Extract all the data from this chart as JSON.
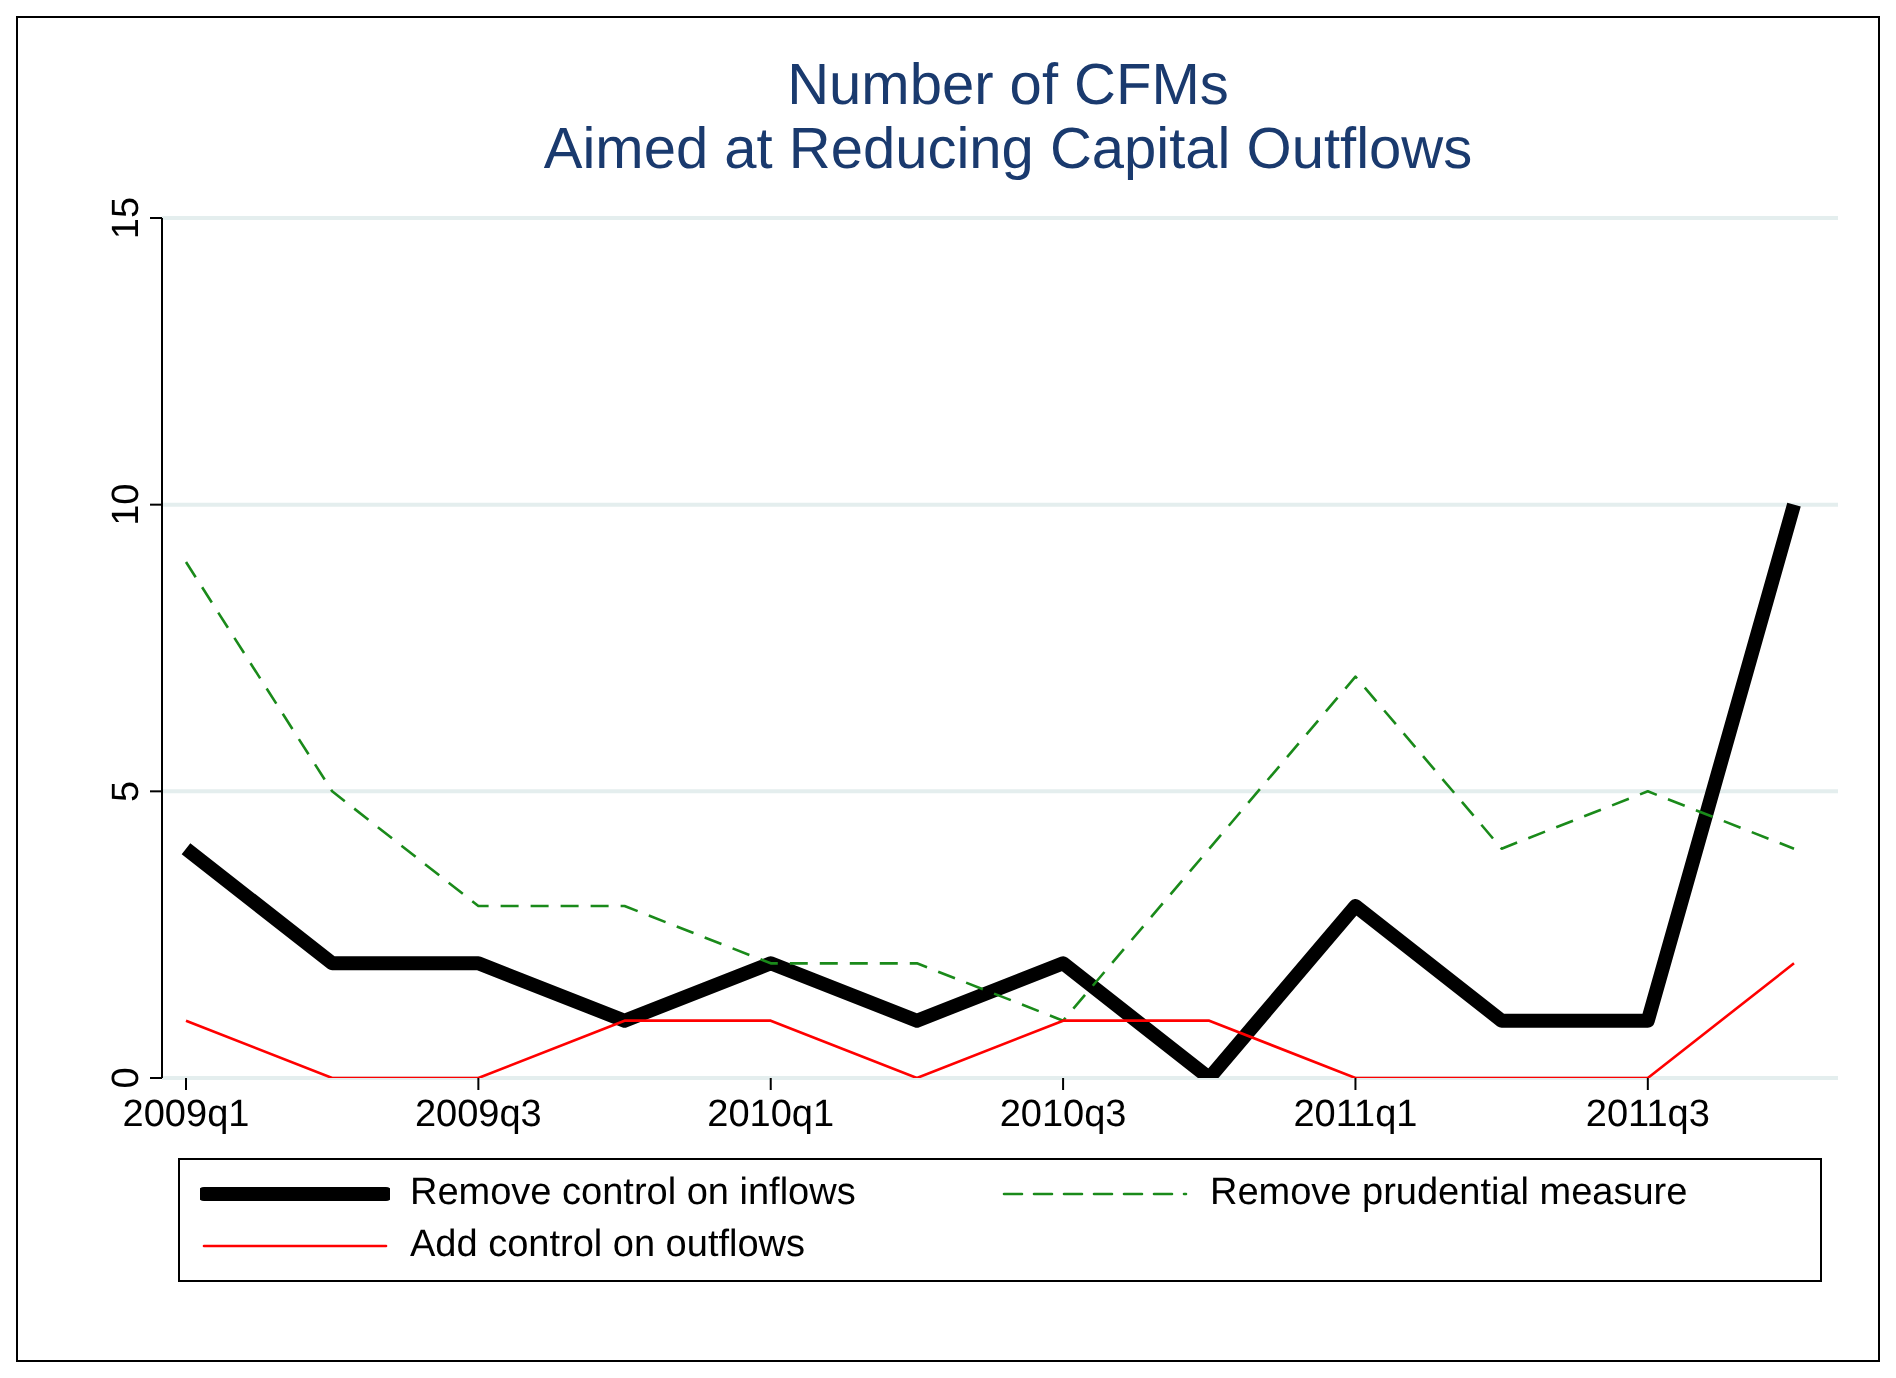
{
  "chart_data": {
    "type": "line",
    "title": "Number of CFMs\nAimed at Reducing Capital Outflows",
    "categories": [
      "2009q1",
      null,
      "2009q3",
      null,
      "2010q1",
      null,
      "2010q3",
      null,
      "2011q1",
      null,
      "2011q3",
      null
    ],
    "series": [
      {
        "name": "Remove control on inflows",
        "color": "#000000",
        "line_style": "solid",
        "values": [
          4,
          2,
          2,
          1,
          2,
          1,
          2,
          0,
          3,
          1,
          1,
          10
        ]
      },
      {
        "name": "Remove prudential measure",
        "color": "#1a8a1a",
        "line_style": "dashed",
        "values": [
          9,
          5,
          3,
          3,
          2,
          2,
          1,
          4,
          7,
          4,
          5,
          4
        ]
      },
      {
        "name": "Add control on outflows",
        "color": "#ff0000",
        "line_style": "solid",
        "values": [
          1,
          0,
          0,
          1,
          1,
          0,
          1,
          1,
          0,
          0,
          0,
          2
        ]
      }
    ],
    "ylim": [
      0,
      15
    ],
    "yticks": [
      0,
      5,
      10,
      15
    ],
    "grid": "y",
    "legend": "bottom",
    "marker": "none"
  }
}
